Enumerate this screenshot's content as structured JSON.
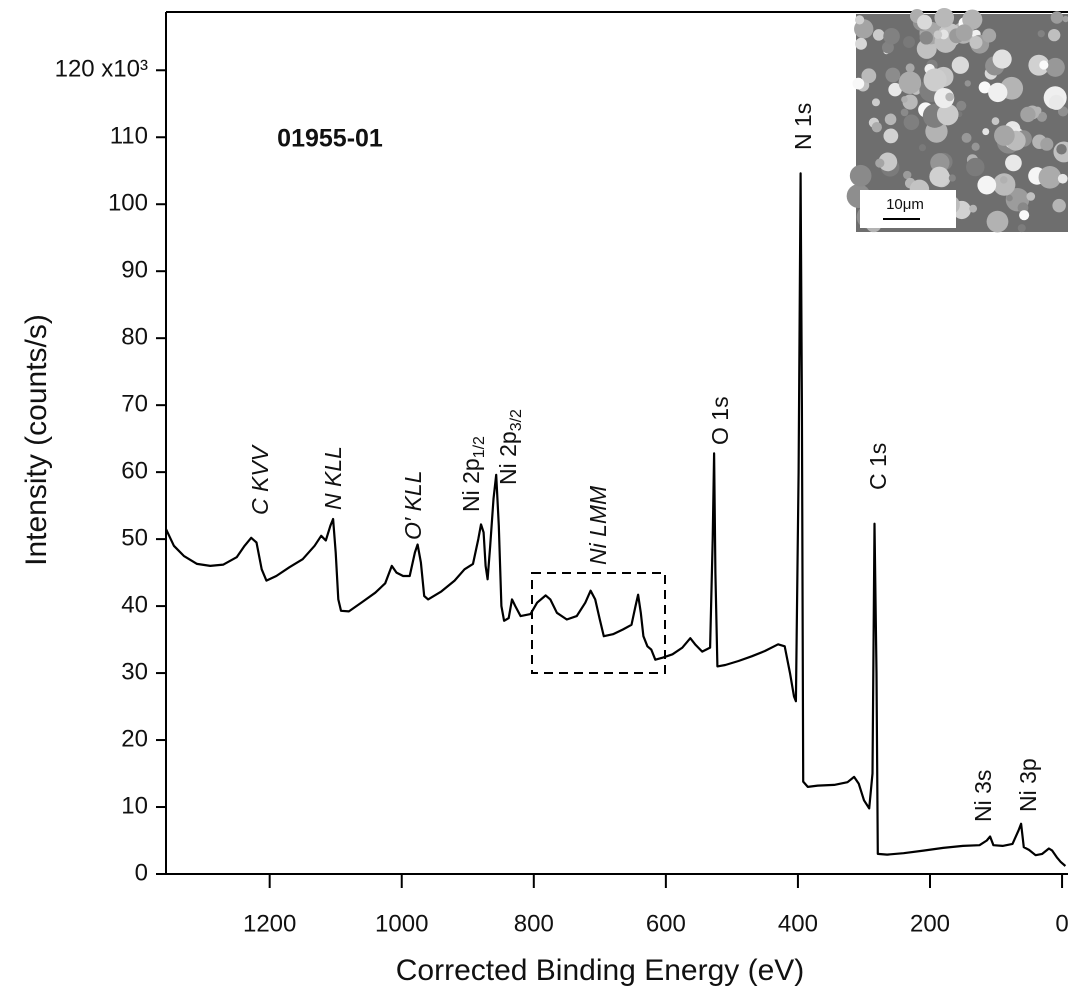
{
  "chart_data": {
    "type": "line",
    "sample_label": "01955-01",
    "x_label": "Corrected Binding Energy (eV)",
    "y_label": "Intensity (counts/s)",
    "xlim": [
      1357,
      -9
    ],
    "ylim": [
      0,
      128.7
    ],
    "xticks": [
      1200,
      1000,
      800,
      600,
      400,
      200,
      0
    ],
    "yticks": [
      0,
      10,
      20,
      30,
      40,
      50,
      60,
      70,
      80,
      90,
      100,
      110,
      {
        "value": 120,
        "label": "120 x10³"
      }
    ],
    "color": "#000000",
    "inset_label": "10μm",
    "annotations": [
      {
        "text": "C KVV",
        "style": "italic"
      },
      {
        "text": "N KLL",
        "style": "italic"
      },
      {
        "text": "O′ KLL",
        "style": "italic"
      },
      {
        "text": "Ni 2p",
        "sub": "1/2",
        "style": "normal"
      },
      {
        "text": "Ni 2p",
        "sub": "3/2",
        "style": "normal"
      },
      {
        "text": "Ni LMM",
        "style": "italic"
      },
      {
        "text": "O 1s",
        "style": "normal"
      },
      {
        "text": "N 1s",
        "style": "normal"
      },
      {
        "text": "C 1s",
        "style": "normal"
      },
      {
        "text": "Ni 3s",
        "style": "normal"
      },
      {
        "text": "Ni 3p",
        "style": "normal"
      }
    ],
    "x": [
      1357,
      1345,
      1330,
      1310,
      1290,
      1270,
      1250,
      1238,
      1228,
      1220,
      1212,
      1205,
      1190,
      1170,
      1150,
      1132,
      1122,
      1115,
      1108,
      1104,
      1100,
      1096,
      1092,
      1080,
      1060,
      1040,
      1025,
      1015,
      1008,
      998,
      988,
      980,
      976,
      971,
      966,
      960,
      940,
      920,
      905,
      892,
      884,
      880,
      876,
      873,
      870,
      866,
      861,
      857,
      853,
      849,
      845,
      838,
      833,
      828,
      820,
      805,
      795,
      782,
      775,
      765,
      750,
      735,
      722,
      714,
      707,
      700,
      694,
      680,
      665,
      652,
      646,
      642,
      638,
      634,
      628,
      622,
      616,
      605,
      590,
      575,
      563,
      555,
      545,
      533,
      529,
      527,
      525,
      522,
      510,
      490,
      470,
      450,
      430,
      420,
      412,
      406,
      403,
      399,
      396,
      394,
      392,
      385,
      370,
      345,
      325,
      315,
      308,
      300,
      292,
      287,
      284,
      281,
      279,
      265,
      240,
      210,
      180,
      150,
      125,
      114,
      109,
      104,
      90,
      75,
      66,
      62,
      58,
      50,
      40,
      30,
      20,
      15,
      8,
      2,
      -5
    ],
    "values": [
      51.5,
      49,
      47.5,
      46.3,
      46,
      46.2,
      47.3,
      49,
      50.2,
      49.5,
      45.5,
      43.8,
      44.5,
      45.8,
      47,
      49,
      50.5,
      49.8,
      52,
      53,
      48,
      41,
      39.3,
      39.2,
      40.6,
      42,
      43.4,
      46,
      45,
      44.5,
      44.5,
      48,
      49.2,
      46.5,
      41.5,
      41,
      42.2,
      43.8,
      45.5,
      46.3,
      50,
      52.2,
      51,
      46,
      44,
      49,
      56,
      59.6,
      52,
      40,
      37.8,
      38.2,
      41,
      40,
      38.5,
      38.8,
      40.5,
      41.6,
      41,
      39,
      38,
      38.5,
      40.5,
      42.3,
      41,
      38,
      35.5,
      35.8,
      36.5,
      37.2,
      40,
      41.7,
      39,
      35.5,
      34,
      33.5,
      32,
      32.3,
      32.8,
      33.8,
      35.2,
      34.2,
      33.2,
      33.8,
      50,
      62.8,
      45,
      31,
      31.2,
      31.8,
      32.5,
      33.3,
      34.3,
      34,
      30,
      26.5,
      25.8,
      60,
      104.6,
      70,
      13.8,
      13,
      13.2,
      13.3,
      13.7,
      14.5,
      13.5,
      11,
      9.8,
      15,
      52.3,
      30,
      3,
      2.9,
      3.1,
      3.5,
      3.9,
      4.2,
      4.3,
      5,
      5.6,
      4.3,
      4.2,
      4.5,
      6.5,
      7.5,
      4,
      3.6,
      2.8,
      3,
      3.8,
      3.5,
      2.5,
      1.8,
      1.2
    ]
  }
}
